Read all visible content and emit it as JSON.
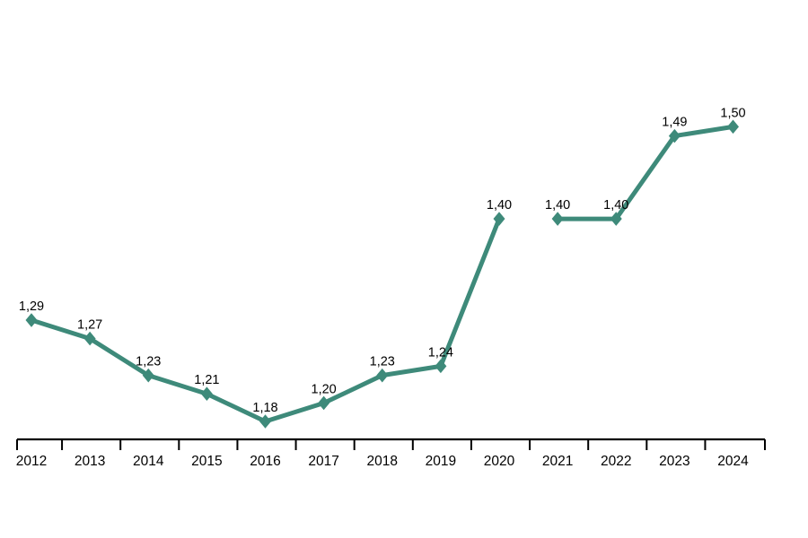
{
  "chart_data": {
    "type": "line",
    "title": "",
    "xlabel": "",
    "ylabel": "",
    "categories": [
      "2012",
      "2013",
      "2014",
      "2015",
      "2016",
      "2017",
      "2018",
      "2019",
      "2020",
      "2021",
      "2022",
      "2023",
      "2024"
    ],
    "values": [
      1.29,
      1.27,
      1.23,
      1.21,
      1.18,
      1.2,
      1.23,
      1.24,
      1.4,
      1.4,
      1.4,
      1.49,
      1.5
    ],
    "point_labels": [
      "1,29",
      "1,27",
      "1,23",
      "1,21",
      "1,18",
      "1,20",
      "1,23",
      "1,24",
      "1,40",
      "1,40",
      "1,40",
      "1,49",
      "1,50"
    ],
    "segments": [
      [
        0,
        8
      ],
      [
        9,
        12
      ]
    ],
    "decimal_separator": ",",
    "ylim": [
      1.16,
      1.52
    ],
    "grid": false,
    "legend": false,
    "y_axis_visible": false,
    "marker": "diamond",
    "line_color": "#3E8A7A",
    "marker_color": "#3E8A7A",
    "axis_color": "#000000",
    "label_color": "#000000",
    "background": "#FFFFFF"
  }
}
